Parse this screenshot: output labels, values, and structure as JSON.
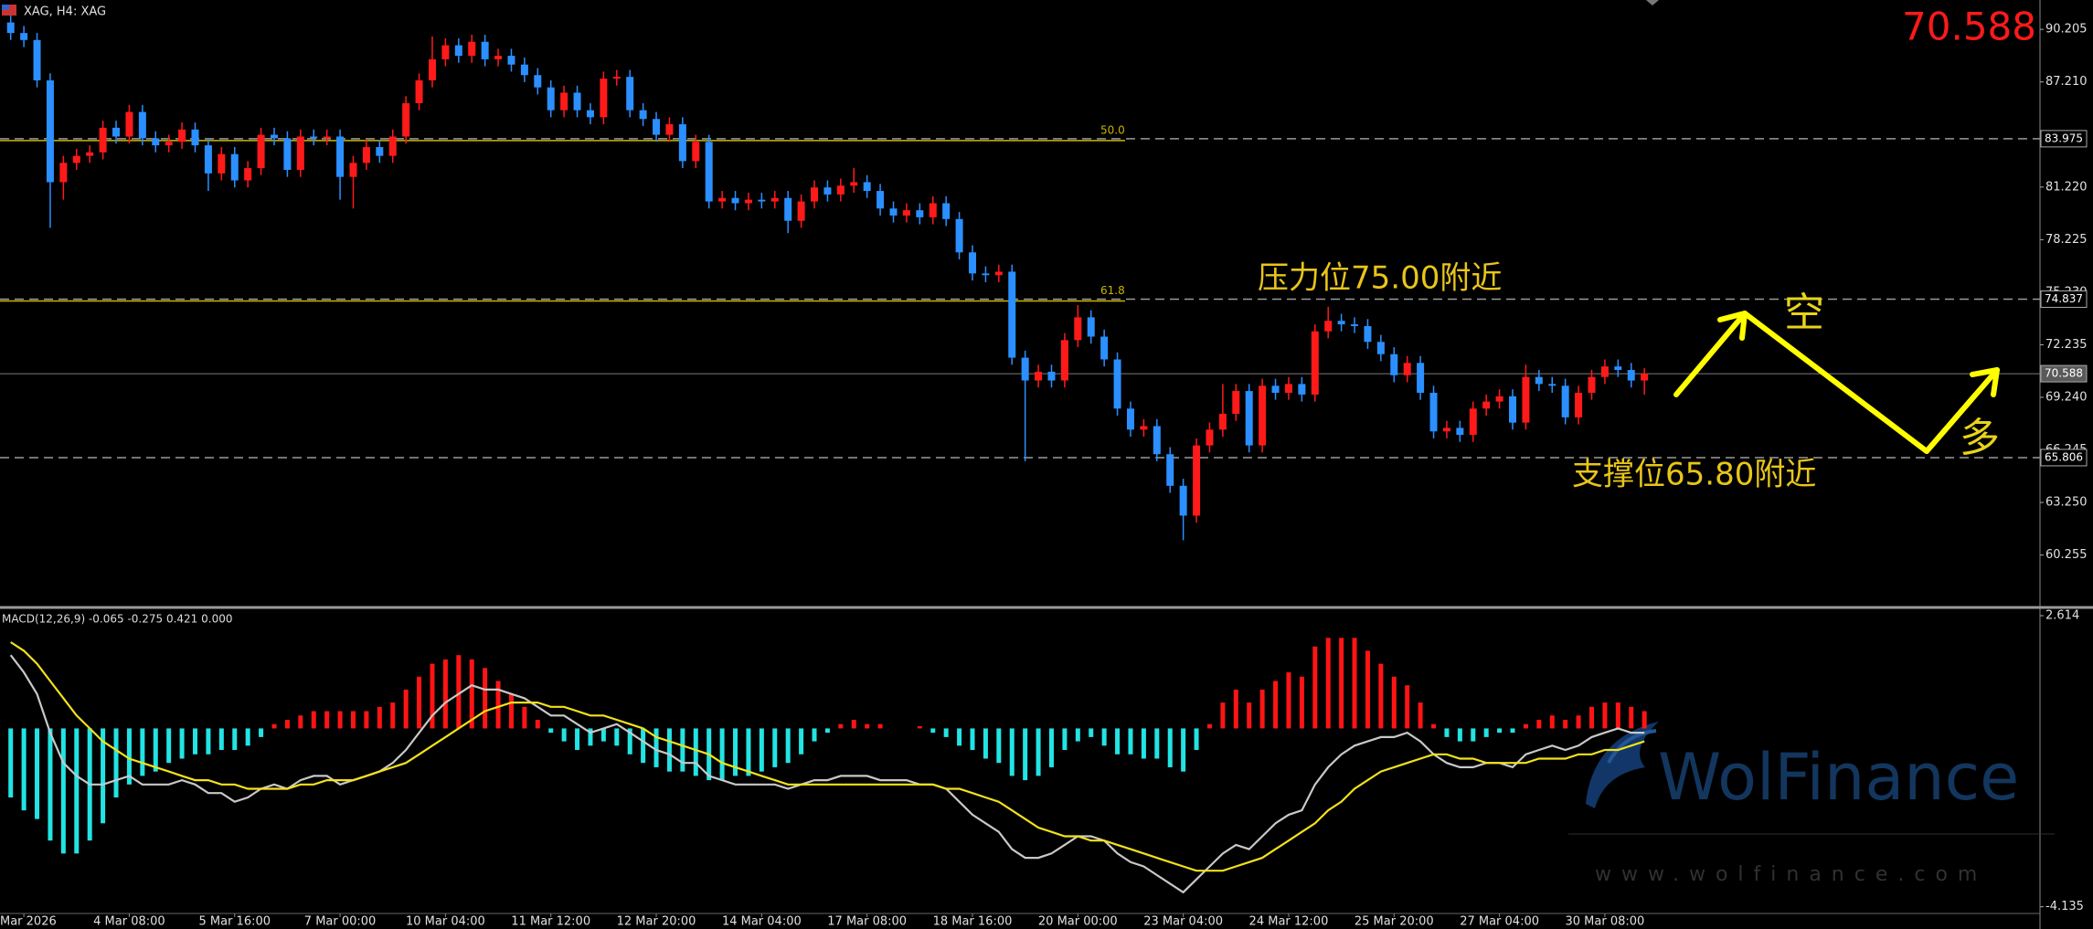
{
  "header": {
    "title": "XAG, H4: XAG"
  },
  "watermark": {
    "name": "WolFinance",
    "url": "www.wolfinance.com"
  },
  "chart_data": [
    {
      "type": "candlestick",
      "categories": [
        null,
        "Mar 2026",
        null,
        null,
        null,
        null,
        null,
        null,
        null,
        "4 Mar 08:00",
        null,
        null,
        null,
        null,
        null,
        null,
        null,
        "5 Mar 16:00",
        null,
        null,
        null,
        null,
        null,
        null,
        null,
        "7 Mar 00:00",
        null,
        null,
        null,
        null,
        null,
        null,
        null,
        "10 Mar 04:00",
        null,
        null,
        null,
        null,
        null,
        null,
        null,
        "11 Mar 12:00",
        null,
        null,
        null,
        null,
        null,
        null,
        null,
        "12 Mar 20:00",
        null,
        null,
        null,
        null,
        null,
        null,
        null,
        "14 Mar 04:00",
        null,
        null,
        null,
        null,
        null,
        null,
        null,
        "17 Mar 08:00",
        null,
        null,
        null,
        null,
        null,
        null,
        null,
        "18 Mar 16:00",
        null,
        null,
        null,
        null,
        null,
        null,
        null,
        "20 Mar 00:00",
        null,
        null,
        null,
        null,
        null,
        null,
        null,
        "23 Mar 04:00",
        null,
        null,
        null,
        null,
        null,
        null,
        null,
        "24 Mar 12:00",
        null,
        null,
        null,
        null,
        null,
        null,
        null,
        "25 Mar 20:00",
        null,
        null,
        null,
        null,
        null,
        null,
        null,
        "27 Mar 04:00",
        null,
        null,
        null,
        null,
        null,
        null,
        null,
        "30 Mar 08:00",
        null,
        null,
        null
      ],
      "open": [
        90.6,
        90.0,
        89.6,
        87.3,
        81.5,
        82.6,
        83.0,
        83.2,
        84.6,
        84.1,
        85.5,
        84.0,
        83.6,
        83.8,
        84.5,
        83.6,
        82.0,
        83.1,
        81.6,
        82.3,
        84.2,
        84.0,
        82.2,
        84.1,
        84.0,
        84.1,
        81.8,
        82.6,
        83.5,
        83.0,
        84.1,
        86.0,
        87.3,
        88.5,
        89.3,
        88.7,
        89.5,
        88.5,
        88.7,
        88.2,
        87.6,
        86.9,
        85.6,
        86.6,
        85.6,
        85.2,
        87.4,
        87.5,
        85.6,
        85.1,
        84.2,
        84.8,
        82.7,
        83.8,
        80.4,
        80.6,
        80.3,
        80.5,
        80.4,
        80.6,
        79.3,
        80.4,
        81.2,
        80.8,
        81.3,
        81.5,
        81.0,
        80.0,
        79.6,
        79.9,
        79.5,
        80.3,
        79.4,
        77.5,
        76.3,
        76.2,
        76.4,
        71.5,
        70.2,
        70.7,
        70.2,
        72.5,
        73.8,
        72.7,
        71.4,
        68.6,
        67.4,
        67.6,
        66.0,
        64.2,
        62.5,
        66.5,
        67.4,
        68.3,
        69.6,
        66.5,
        69.9,
        69.5,
        70.0,
        69.4,
        73.0,
        73.6,
        73.4,
        73.3,
        72.4,
        71.7,
        70.5,
        71.2,
        69.5,
        67.3,
        67.5,
        67.1,
        68.6,
        69.0,
        69.3,
        67.8,
        70.4,
        70.0,
        69.9,
        68.1,
        69.5,
        70.4,
        71.0,
        70.8,
        70.2
      ],
      "high": [
        91.0,
        90.4,
        90.0,
        87.7,
        83.0,
        83.4,
        83.6,
        85.0,
        85.0,
        85.9,
        85.9,
        84.4,
        84.2,
        84.9,
        84.9,
        84.0,
        83.5,
        83.5,
        82.7,
        84.6,
        84.6,
        84.4,
        84.5,
        84.5,
        84.5,
        84.5,
        83.0,
        83.9,
        83.9,
        84.5,
        86.4,
        87.7,
        89.8,
        89.7,
        89.7,
        89.9,
        89.9,
        89.1,
        89.1,
        88.6,
        88.0,
        87.3,
        87.0,
        87.0,
        86.0,
        87.8,
        87.9,
        87.9,
        86.0,
        85.5,
        85.2,
        85.2,
        84.2,
        84.2,
        81.0,
        81.0,
        80.9,
        80.9,
        81.0,
        81.0,
        80.8,
        81.6,
        81.6,
        81.7,
        82.3,
        81.9,
        81.4,
        80.4,
        80.3,
        80.3,
        80.7,
        80.7,
        79.8,
        77.9,
        76.7,
        76.8,
        76.8,
        71.9,
        71.1,
        71.1,
        72.9,
        74.5,
        74.2,
        73.1,
        71.8,
        69.0,
        68.0,
        68.0,
        66.4,
        64.6,
        66.9,
        67.8,
        70.0,
        70.0,
        70.0,
        70.3,
        70.3,
        70.4,
        70.4,
        73.4,
        74.4,
        74.0,
        73.8,
        73.7,
        72.8,
        72.1,
        71.6,
        71.6,
        69.9,
        67.9,
        67.9,
        69.0,
        69.4,
        69.7,
        69.7,
        71.1,
        70.8,
        70.4,
        70.3,
        69.9,
        70.8,
        71.4,
        71.4,
        71.2,
        70.9
      ],
      "low": [
        89.6,
        89.2,
        86.9,
        78.9,
        80.5,
        82.2,
        82.6,
        82.8,
        83.7,
        83.7,
        83.6,
        83.2,
        83.2,
        83.4,
        83.2,
        81.0,
        81.6,
        81.2,
        81.2,
        81.9,
        83.6,
        81.8,
        81.8,
        83.6,
        83.6,
        80.5,
        80.0,
        82.2,
        82.6,
        82.6,
        83.7,
        85.6,
        86.9,
        88.1,
        88.3,
        88.3,
        88.1,
        88.1,
        87.8,
        87.2,
        86.5,
        85.2,
        85.2,
        85.2,
        84.8,
        84.8,
        87.0,
        85.2,
        84.7,
        83.8,
        83.8,
        82.3,
        82.3,
        80.0,
        80.0,
        79.9,
        79.9,
        80.0,
        80.0,
        78.6,
        78.9,
        80.0,
        80.4,
        80.4,
        80.9,
        80.6,
        79.6,
        79.2,
        79.2,
        79.1,
        79.1,
        79.0,
        77.1,
        75.9,
        75.8,
        75.8,
        71.1,
        65.6,
        69.8,
        69.8,
        69.8,
        72.1,
        72.3,
        71.0,
        68.2,
        67.0,
        67.0,
        65.6,
        63.8,
        61.1,
        62.1,
        66.1,
        67.0,
        67.9,
        66.1,
        66.1,
        69.1,
        69.1,
        69.0,
        69.0,
        72.6,
        73.0,
        72.9,
        72.0,
        71.3,
        70.1,
        70.1,
        69.1,
        66.9,
        66.9,
        66.7,
        66.7,
        68.2,
        68.6,
        67.4,
        67.4,
        69.6,
        69.5,
        67.7,
        67.7,
        69.1,
        70.0,
        70.4,
        69.8,
        69.4
      ],
      "close": [
        90.0,
        89.6,
        87.3,
        81.5,
        82.6,
        83.0,
        83.2,
        84.6,
        84.1,
        85.5,
        84.0,
        83.6,
        83.8,
        84.5,
        83.6,
        82.0,
        83.1,
        81.6,
        82.3,
        84.2,
        84.0,
        82.2,
        84.1,
        84.0,
        84.1,
        81.8,
        82.6,
        83.5,
        83.0,
        84.1,
        86.0,
        87.3,
        88.5,
        89.3,
        88.7,
        89.5,
        88.5,
        88.7,
        88.2,
        87.6,
        86.9,
        85.6,
        86.6,
        85.6,
        85.2,
        87.4,
        87.5,
        85.6,
        85.1,
        84.2,
        84.8,
        82.7,
        83.8,
        80.4,
        80.6,
        80.3,
        80.5,
        80.4,
        80.6,
        79.3,
        80.4,
        81.2,
        80.8,
        81.3,
        81.5,
        81.0,
        80.0,
        79.6,
        79.9,
        79.5,
        80.3,
        79.4,
        77.5,
        76.3,
        76.2,
        76.4,
        71.5,
        70.2,
        70.7,
        70.2,
        72.5,
        73.8,
        72.7,
        71.4,
        68.6,
        67.4,
        67.6,
        66.0,
        64.2,
        62.5,
        66.5,
        67.4,
        68.3,
        69.6,
        66.5,
        69.9,
        69.5,
        70.0,
        69.4,
        73.0,
        73.6,
        73.4,
        73.3,
        72.4,
        71.7,
        70.5,
        71.2,
        69.5,
        67.3,
        67.5,
        67.1,
        68.6,
        69.0,
        69.3,
        67.8,
        70.4,
        70.0,
        69.9,
        68.1,
        69.5,
        70.4,
        71.0,
        70.8,
        70.2,
        70.588
      ],
      "up_color": "#ff1a1a",
      "down_color": "#2b8fff",
      "ylim": [
        57.32,
        91.88
      ],
      "yticks": [
        90.205,
        {
          "value": 87.21,
          "label": "87.210"
        },
        {
          "value": 81.22,
          "label": "81.220"
        },
        78.225,
        {
          "value": 75.23,
          "label": "75.230"
        },
        72.235,
        {
          "value": 69.24,
          "label": "69.240"
        },
        66.245,
        {
          "value": 63.25,
          "label": "63.250"
        },
        60.255
      ],
      "fib_levels": [
        {
          "value": 83.975,
          "label": "50.0"
        },
        {
          "value": 74.837,
          "label": "61.8"
        }
      ],
      "levels": [
        65.806
      ],
      "grid": false,
      "annotations": {
        "resistance": "压力位75.00附近",
        "support": "支撑位65.80附近",
        "short": "空",
        "long": "多"
      }
    },
    {
      "type": "macd",
      "label": "MACD(12,26,9) -0.065 -0.275 0.421 0.000",
      "ylim": [
        -4.46,
        2.72
      ],
      "yticks": [
        2.614,
        -4.135
      ],
      "up_color": "#ff1414",
      "down_color": "#22e4e4",
      "histogram": [
        -1.6,
        -1.9,
        -2.1,
        -2.6,
        -2.9,
        -2.9,
        -2.6,
        -2.2,
        -1.6,
        -1.3,
        -1.1,
        -1.0,
        -0.8,
        -0.7,
        -0.6,
        -0.6,
        -0.5,
        -0.5,
        -0.4,
        -0.2,
        0.1,
        0.2,
        0.3,
        0.4,
        0.4,
        0.4,
        0.4,
        0.4,
        0.5,
        0.6,
        0.9,
        1.2,
        1.5,
        1.6,
        1.7,
        1.6,
        1.4,
        1.1,
        0.8,
        0.5,
        0.2,
        -0.1,
        -0.3,
        -0.5,
        -0.4,
        -0.3,
        -0.4,
        -0.6,
        -0.8,
        -0.9,
        -1.0,
        -1.0,
        -1.1,
        -1.2,
        -1.2,
        -1.1,
        -1.1,
        -1.0,
        -0.9,
        -0.8,
        -0.6,
        -0.3,
        -0.1,
        0.1,
        0.2,
        0.1,
        0.1,
        0.0,
        0.0,
        0.05,
        -0.1,
        -0.2,
        -0.4,
        -0.5,
        -0.7,
        -0.8,
        -1.1,
        -1.2,
        -1.1,
        -0.9,
        -0.5,
        -0.3,
        -0.2,
        -0.4,
        -0.6,
        -0.6,
        -0.7,
        -0.7,
        -0.9,
        -1.0,
        -0.5,
        0.1,
        0.6,
        0.9,
        0.6,
        0.9,
        1.1,
        1.3,
        1.2,
        1.9,
        2.1,
        2.1,
        2.1,
        1.8,
        1.5,
        1.2,
        1.0,
        0.6,
        0.1,
        -0.2,
        -0.3,
        -0.3,
        -0.2,
        -0.1,
        -0.1,
        0.1,
        0.2,
        0.3,
        0.2,
        0.3,
        0.5,
        0.6,
        0.6,
        0.5,
        0.4
      ],
      "macd_line": {
        "color": "#c8c8c8",
        "values": [
          1.7,
          1.3,
          0.8,
          -0.1,
          -0.8,
          -1.1,
          -1.3,
          -1.3,
          -1.2,
          -1.1,
          -1.3,
          -1.3,
          -1.3,
          -1.2,
          -1.3,
          -1.5,
          -1.5,
          -1.7,
          -1.6,
          -1.4,
          -1.3,
          -1.4,
          -1.2,
          -1.1,
          -1.1,
          -1.3,
          -1.2,
          -1.1,
          -1.0,
          -0.8,
          -0.5,
          -0.1,
          0.3,
          0.6,
          0.8,
          1.0,
          0.9,
          0.9,
          0.8,
          0.7,
          0.5,
          0.3,
          0.3,
          0.1,
          -0.1,
          0.0,
          0.1,
          -0.1,
          -0.3,
          -0.5,
          -0.6,
          -0.8,
          -0.8,
          -1.1,
          -1.2,
          -1.3,
          -1.3,
          -1.3,
          -1.3,
          -1.4,
          -1.3,
          -1.2,
          -1.2,
          -1.1,
          -1.1,
          -1.1,
          -1.2,
          -1.2,
          -1.2,
          -1.3,
          -1.3,
          -1.4,
          -1.7,
          -2.0,
          -2.2,
          -2.4,
          -2.8,
          -3.0,
          -3.0,
          -2.9,
          -2.7,
          -2.5,
          -2.5,
          -2.6,
          -2.9,
          -3.1,
          -3.2,
          -3.4,
          -3.6,
          -3.8,
          -3.5,
          -3.2,
          -2.9,
          -2.7,
          -2.8,
          -2.5,
          -2.2,
          -2.0,
          -1.9,
          -1.3,
          -0.9,
          -0.6,
          -0.4,
          -0.3,
          -0.2,
          -0.2,
          -0.1,
          -0.3,
          -0.6,
          -0.8,
          -0.9,
          -0.9,
          -0.8,
          -0.8,
          -0.9,
          -0.6,
          -0.5,
          -0.4,
          -0.5,
          -0.4,
          -0.2,
          -0.1,
          0.0,
          -0.1,
          -0.1
        ]
      },
      "signal_line": {
        "color": "#f2e21a",
        "values": [
          2.0,
          1.8,
          1.5,
          1.1,
          0.7,
          0.3,
          0.0,
          -0.3,
          -0.5,
          -0.7,
          -0.8,
          -0.9,
          -1.0,
          -1.1,
          -1.2,
          -1.2,
          -1.3,
          -1.3,
          -1.4,
          -1.4,
          -1.4,
          -1.4,
          -1.3,
          -1.3,
          -1.2,
          -1.2,
          -1.2,
          -1.1,
          -1.0,
          -0.9,
          -0.8,
          -0.6,
          -0.4,
          -0.2,
          0.0,
          0.2,
          0.4,
          0.5,
          0.6,
          0.6,
          0.6,
          0.5,
          0.5,
          0.4,
          0.3,
          0.3,
          0.2,
          0.1,
          0.0,
          -0.2,
          -0.3,
          -0.4,
          -0.5,
          -0.6,
          -0.8,
          -0.9,
          -1.0,
          -1.1,
          -1.2,
          -1.3,
          -1.3,
          -1.3,
          -1.3,
          -1.3,
          -1.3,
          -1.3,
          -1.3,
          -1.3,
          -1.3,
          -1.3,
          -1.3,
          -1.4,
          -1.4,
          -1.5,
          -1.6,
          -1.7,
          -1.9,
          -2.1,
          -2.3,
          -2.4,
          -2.5,
          -2.5,
          -2.6,
          -2.6,
          -2.7,
          -2.8,
          -2.9,
          -3.0,
          -3.1,
          -3.2,
          -3.3,
          -3.3,
          -3.3,
          -3.2,
          -3.1,
          -3.0,
          -2.8,
          -2.6,
          -2.4,
          -2.2,
          -1.9,
          -1.7,
          -1.4,
          -1.2,
          -1.0,
          -0.9,
          -0.8,
          -0.7,
          -0.6,
          -0.6,
          -0.7,
          -0.7,
          -0.8,
          -0.8,
          -0.8,
          -0.8,
          -0.7,
          -0.7,
          -0.7,
          -0.6,
          -0.6,
          -0.5,
          -0.5,
          -0.4,
          -0.3
        ]
      }
    }
  ]
}
